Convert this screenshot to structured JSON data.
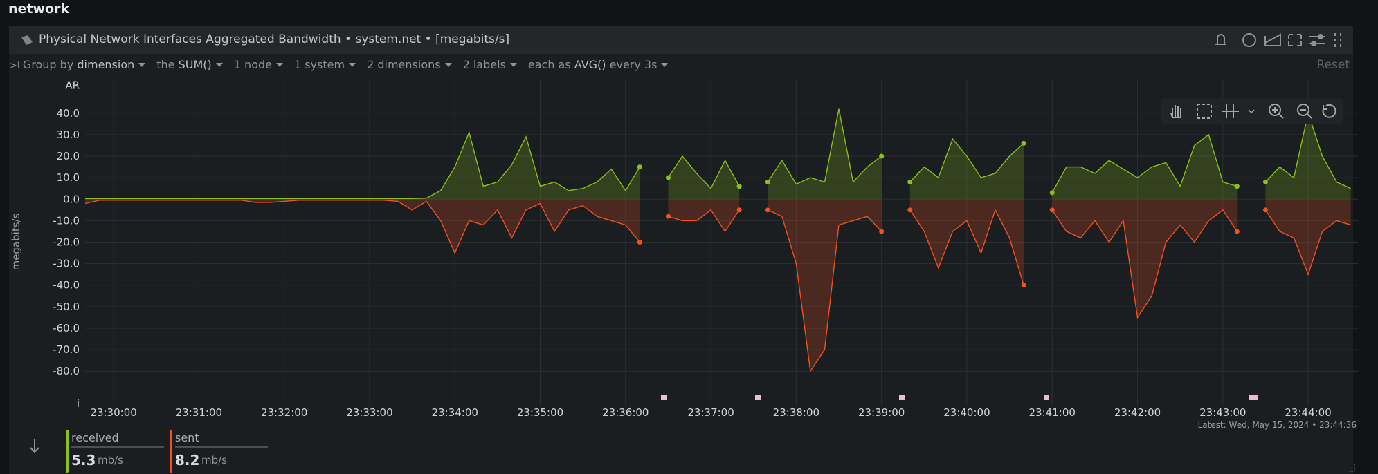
{
  "section": "network",
  "header": {
    "title": "Physical Network Interfaces Aggregated Bandwidth • system.net • [megabits/s]"
  },
  "toolbar": {
    "group_by": "Group by",
    "group_value": "dimension",
    "the": "the",
    "aggregation": "SUM()",
    "nodes": "1 node",
    "systems": "1 system",
    "dimensions": "2 dimensions",
    "labels": "2 labels",
    "each_as": "each as",
    "time_aggregation": "AVG()",
    "every": "every 3s",
    "reset": "Reset"
  },
  "latest": "Latest:  Wed, May 15, 2024 • 23:44:36",
  "chart_data": {
    "type": "area",
    "y_label": "megabits/s",
    "xlim": [
      "23:29:40",
      "23:44:35"
    ],
    "xticks": [
      "23:30:00",
      "23:31:00",
      "23:32:00",
      "23:33:00",
      "23:34:00",
      "23:35:00",
      "23:36:00",
      "23:37:00",
      "23:38:00",
      "23:39:00",
      "23:40:00",
      "23:41:00",
      "23:42:00",
      "23:43:00",
      "23:44:00"
    ],
    "ylim": [
      -96,
      56
    ],
    "yticks": [
      {
        "value": 53,
        "label": "AR"
      },
      {
        "value": 40,
        "label": "40.0"
      },
      {
        "value": 30,
        "label": "30.0"
      },
      {
        "value": 20,
        "label": "20.0"
      },
      {
        "value": 10,
        "label": "10.0"
      },
      {
        "value": 0,
        "label": "0.0"
      },
      {
        "value": -10,
        "label": "-10.0"
      },
      {
        "value": -20,
        "label": "-20.0"
      },
      {
        "value": -30,
        "label": "-30.0"
      },
      {
        "value": -40,
        "label": "-40.0"
      },
      {
        "value": -50,
        "label": "-50.0"
      },
      {
        "value": -60,
        "label": "-60.0"
      },
      {
        "value": -70,
        "label": "-70.0"
      },
      {
        "value": -80,
        "label": "-80.0"
      },
      {
        "value": -95,
        "label": "i"
      }
    ],
    "grid": true,
    "x": [
      "23:29:40",
      "23:29:50",
      "23:30:00",
      "23:30:10",
      "23:30:20",
      "23:30:30",
      "23:30:40",
      "23:30:50",
      "23:31:00",
      "23:31:10",
      "23:31:20",
      "23:31:30",
      "23:31:40",
      "23:31:50",
      "23:32:00",
      "23:32:10",
      "23:32:20",
      "23:32:30",
      "23:32:40",
      "23:32:50",
      "23:33:00",
      "23:33:10",
      "23:33:20",
      "23:33:30",
      "23:33:40",
      "23:33:50",
      "23:34:00",
      "23:34:10",
      "23:34:20",
      "23:34:30",
      "23:34:40",
      "23:34:50",
      "23:35:00",
      "23:35:10",
      "23:35:20",
      "23:35:30",
      "23:35:40",
      "23:35:50",
      "23:36:00",
      "23:36:10",
      "23:36:20",
      "23:36:30",
      "23:36:40",
      "23:36:50",
      "23:37:00",
      "23:37:10",
      "23:37:20",
      "23:37:30",
      "23:37:40",
      "23:37:50",
      "23:38:00",
      "23:38:10",
      "23:38:20",
      "23:38:30",
      "23:38:40",
      "23:38:50",
      "23:39:00",
      "23:39:10",
      "23:39:20",
      "23:39:30",
      "23:39:40",
      "23:39:50",
      "23:40:00",
      "23:40:10",
      "23:40:20",
      "23:40:30",
      "23:40:40",
      "23:40:50",
      "23:41:00",
      "23:41:10",
      "23:41:20",
      "23:41:30",
      "23:41:40",
      "23:41:50",
      "23:42:00",
      "23:42:10",
      "23:42:20",
      "23:42:30",
      "23:42:40",
      "23:42:50",
      "23:43:00",
      "23:43:10",
      "23:43:20",
      "23:43:30",
      "23:43:40",
      "23:43:50",
      "23:44:00",
      "23:44:10",
      "23:44:20",
      "23:44:30"
    ],
    "series": [
      {
        "name": "received",
        "color": "#8ac11a",
        "latest": "5.3",
        "unit": "mb/s",
        "values": [
          0.3,
          0.3,
          0.3,
          0.3,
          0.3,
          0.3,
          0.3,
          0.3,
          0.3,
          0.3,
          0.3,
          0.3,
          0.3,
          0.3,
          0.3,
          0.3,
          0.3,
          0.3,
          0.3,
          0.3,
          0.3,
          0.3,
          0.3,
          0.3,
          0.5,
          4,
          15,
          31,
          6,
          8,
          16,
          29,
          6,
          8,
          4,
          5,
          8,
          14,
          4,
          15,
          null,
          10,
          20,
          12,
          5,
          18,
          6,
          null,
          8,
          18,
          7,
          10,
          8,
          42,
          8,
          15,
          20,
          null,
          8,
          15,
          10,
          28,
          20,
          10,
          12,
          20,
          26,
          null,
          3,
          15,
          15,
          12,
          18,
          14,
          10,
          15,
          17,
          6,
          25,
          30,
          8,
          6,
          null,
          8,
          15,
          10,
          40,
          20,
          8,
          5
        ]
      },
      {
        "name": "sent",
        "color": "#f4511e",
        "latest": "8.2",
        "unit": "mb/s",
        "values": [
          -2,
          -0.5,
          -0.5,
          -0.5,
          -0.5,
          -0.5,
          -0.5,
          -0.5,
          -0.5,
          -0.5,
          -0.5,
          -0.5,
          -1.5,
          -1.5,
          -1,
          -0.5,
          -0.5,
          -0.5,
          -0.5,
          -0.5,
          -0.5,
          -0.5,
          -1,
          -5,
          -1,
          -10,
          -25,
          -10,
          -12,
          -5,
          -18,
          -5,
          -2,
          -15,
          -5,
          -3,
          -8,
          -10,
          -12,
          -20,
          null,
          -8,
          -10,
          -10,
          -5,
          -15,
          -5,
          null,
          -5,
          -8,
          -30,
          -80,
          -70,
          -12,
          -10,
          -8,
          -15,
          null,
          -5,
          -15,
          -32,
          -15,
          -10,
          -25,
          -5,
          -18,
          -40,
          null,
          -5,
          -15,
          -18,
          -10,
          -20,
          -10,
          -55,
          -45,
          -20,
          -12,
          -20,
          -10,
          -5,
          -15,
          null,
          -5,
          -15,
          -18,
          -35,
          -15,
          -10,
          -12
        ]
      }
    ]
  }
}
